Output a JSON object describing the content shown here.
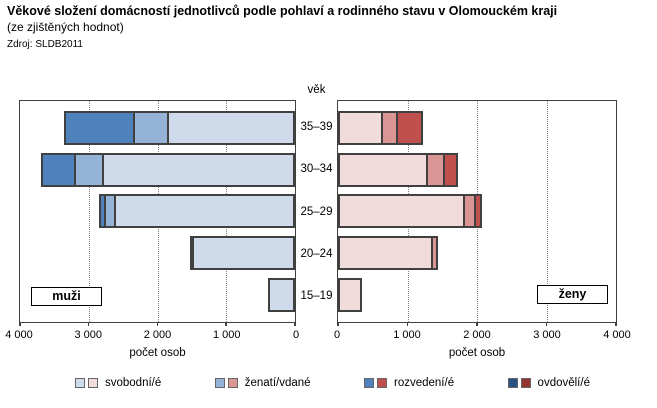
{
  "header": {
    "title": "Věkové složení domácností jednotlivců podle pohlaví a rodinného stavu v Olomouckém kraji",
    "subtitle": "(ze zjištěných hodnot)",
    "source": "Zdroj: SLDB2011"
  },
  "age_axis_header": "věk",
  "x_axis_label": "počet osob",
  "panels": {
    "left_label": "muži",
    "right_label": "ženy"
  },
  "legend": {
    "items": [
      {
        "label": "svobodní/é",
        "blue": "#CFDBEB",
        "red": "#F2DCDB"
      },
      {
        "label": "ženatí/vdané",
        "blue": "#95B3D7",
        "red": "#D99694"
      },
      {
        "label": "rozvedení/é",
        "blue": "#4F81BD",
        "red": "#C0504D"
      },
      {
        "label": "ovdovělí/é",
        "blue": "#2A5183",
        "red": "#943634"
      }
    ]
  },
  "chart_data": {
    "type": "bar",
    "orientation": "horizontal-mirrored-pyramid",
    "categories": [
      "35–39",
      "30–34",
      "25–29",
      "20–24",
      "15–19"
    ],
    "status_order": [
      "svobodní/é",
      "ženatí/vdané",
      "rozvedení/é",
      "ovdovělí/é"
    ],
    "xlim": [
      0,
      4000
    ],
    "gridlines": [
      1000,
      2000,
      3000
    ],
    "xtick_labels_left": [
      "4 000",
      "3 000",
      "2 000",
      "1 000",
      "0"
    ],
    "xtick_labels_right": [
      "0",
      "1 000",
      "2 000",
      "3 000",
      "4 000"
    ],
    "grid": "dotted-vertical",
    "legend_position": "bottom",
    "series": [
      {
        "name": "muži",
        "side": "left",
        "colors": [
          "#CFDBEB",
          "#95B3D7",
          "#4F81BD",
          "#2A5183"
        ],
        "values": [
          [
            1840,
            490,
            1030,
            0
          ],
          [
            2780,
            400,
            520,
            0
          ],
          [
            2610,
            140,
            100,
            0
          ],
          [
            1470,
            40,
            0,
            0
          ],
          [
            400,
            0,
            0,
            0
          ]
        ]
      },
      {
        "name": "ženy",
        "side": "right",
        "colors": [
          "#F2DCDB",
          "#D99694",
          "#C0504D",
          "#943634"
        ],
        "values": [
          [
            650,
            220,
            360,
            0
          ],
          [
            1290,
            250,
            180,
            0
          ],
          [
            1830,
            160,
            80,
            0
          ],
          [
            1370,
            70,
            0,
            0
          ],
          [
            350,
            0,
            0,
            0
          ]
        ]
      }
    ]
  }
}
